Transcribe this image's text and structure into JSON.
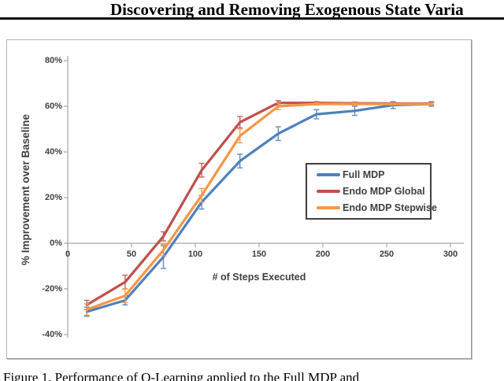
{
  "page": {
    "header_title": "Discovering and Removing Exogenous State Varia",
    "caption": "Figure 1. Performance of Q-Learning applied to the Full MDP and"
  },
  "chart_data": {
    "type": "line",
    "title": "",
    "xlabel": "# of Steps Executed",
    "ylabel": "% Improvement over Baseline",
    "xlim": [
      0,
      300
    ],
    "ylim": [
      -40,
      80
    ],
    "grid": false,
    "legend_position": "middle-right",
    "x_ticks": [
      0,
      50,
      100,
      150,
      200,
      250,
      300
    ],
    "y_tick_values": [
      80,
      60,
      40,
      20,
      0,
      -20,
      -40
    ],
    "y_tick_labels": [
      "80%",
      "60%",
      "40%",
      "20%",
      "0%",
      "-20%",
      "-40%"
    ],
    "x": [
      15,
      45,
      75,
      105,
      135,
      165,
      195,
      225,
      255,
      285
    ],
    "series": [
      {
        "name": "Full MDP",
        "color": "#4F81BD",
        "values": [
          -30,
          -25,
          -6,
          18,
          36,
          48,
          56.5,
          58,
          60.5,
          61
        ],
        "errors": [
          2,
          2,
          5,
          3,
          3,
          3,
          2,
          2,
          1.5,
          1
        ]
      },
      {
        "name": "Endo MDP Global",
        "color": "#C0504D",
        "values": [
          -27,
          -17,
          3,
          32,
          53,
          61.5,
          61.5,
          61.3,
          61.2,
          61.2
        ],
        "errors": [
          2,
          3,
          2,
          3,
          2.5,
          1,
          0.5,
          0.5,
          0.5,
          0.5
        ]
      },
      {
        "name": "Endo MDP Stepwise",
        "color": "#F79646",
        "values": [
          -29,
          -23,
          -3,
          21,
          47,
          60,
          61,
          61,
          61,
          61
        ],
        "errors": [
          2.5,
          3,
          2.5,
          3,
          3,
          1.5,
          0.5,
          0.5,
          0.5,
          0.5
        ]
      }
    ],
    "error_bars": true
  },
  "colors": {
    "axis_line": "#a6a6a6",
    "tick_text": "#3f3f3f",
    "header_rule": "#0a0a0a",
    "series_blue": "#4F81BD",
    "series_red": "#C0504D",
    "series_orange": "#F79646"
  }
}
